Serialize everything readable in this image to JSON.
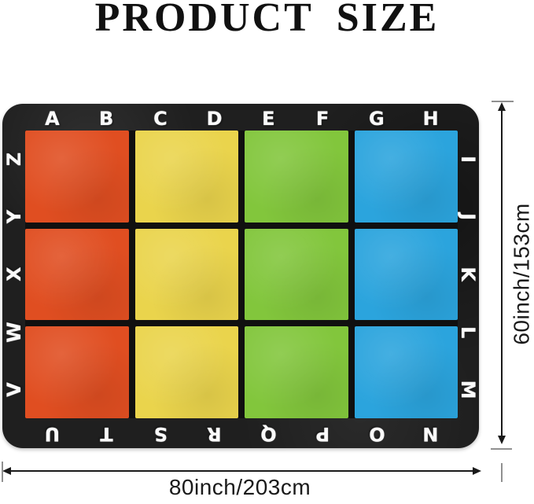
{
  "title": "PRODUCT SIZE",
  "rug": {
    "letters": {
      "top": [
        "A",
        "B",
        "C",
        "D",
        "E",
        "F",
        "G",
        "H"
      ],
      "right": [
        "I",
        "J",
        "K",
        "L",
        "M"
      ],
      "bottom": [
        "U",
        "T",
        "S",
        "R",
        "Q",
        "P",
        "O",
        "N"
      ],
      "left": [
        "Z",
        "Y",
        "X",
        "W",
        "V"
      ]
    },
    "grid": {
      "rows": 3,
      "cols": 4,
      "column_colors": [
        "#e04e21",
        "#ead44c",
        "#82c63c",
        "#2ba4dd"
      ]
    },
    "base_color": "#1f1f1f",
    "letter_color": "#fafafa"
  },
  "dimensions": {
    "height_label": "60inch/153cm",
    "width_label": "80inch/203cm",
    "line_color": "#1a1a1a",
    "cap_color": "#909090"
  }
}
